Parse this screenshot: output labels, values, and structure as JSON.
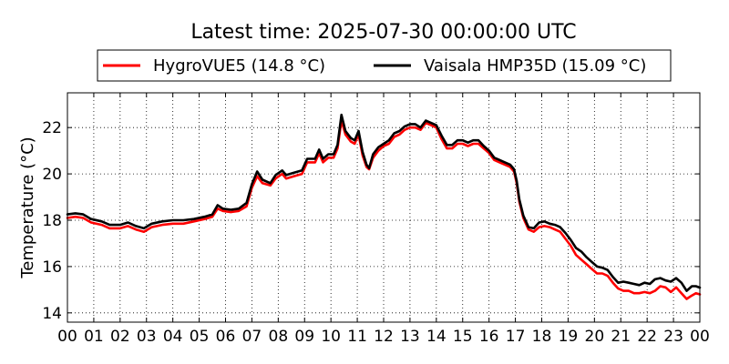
{
  "chart_data": {
    "type": "line",
    "title": "Latest time: 2025-07-30 00:00:00 UTC",
    "ylabel": "Temperature (°C)",
    "xlabel": "",
    "xlim": [
      0,
      24
    ],
    "ylim": [
      13.6,
      23.5
    ],
    "grid": true,
    "legend_placement": "top",
    "x_tick_labels": [
      "00",
      "01",
      "02",
      "03",
      "04",
      "05",
      "06",
      "07",
      "08",
      "09",
      "10",
      "11",
      "12",
      "13",
      "14",
      "15",
      "16",
      "17",
      "18",
      "19",
      "20",
      "21",
      "22",
      "23",
      "00"
    ],
    "y_ticks": [
      14,
      16,
      18,
      20,
      22
    ],
    "y_tick_labels": [
      "14",
      "16",
      "18",
      "20",
      "22"
    ],
    "series": [
      {
        "name": "HygroVUE5 (14.8 °C)",
        "color": "#ff0000",
        "points": [
          [
            0,
            18.1
          ],
          [
            0.3,
            18.15
          ],
          [
            0.6,
            18.1
          ],
          [
            0.9,
            17.9
          ],
          [
            1.3,
            17.8
          ],
          [
            1.6,
            17.65
          ],
          [
            2.0,
            17.65
          ],
          [
            2.3,
            17.75
          ],
          [
            2.6,
            17.6
          ],
          [
            2.9,
            17.5
          ],
          [
            3.2,
            17.7
          ],
          [
            3.6,
            17.8
          ],
          [
            4.0,
            17.85
          ],
          [
            4.4,
            17.85
          ],
          [
            4.8,
            17.95
          ],
          [
            5.2,
            18.05
          ],
          [
            5.5,
            18.15
          ],
          [
            5.7,
            18.5
          ],
          [
            5.9,
            18.4
          ],
          [
            6.2,
            18.35
          ],
          [
            6.5,
            18.4
          ],
          [
            6.8,
            18.6
          ],
          [
            7.0,
            19.4
          ],
          [
            7.2,
            19.9
          ],
          [
            7.4,
            19.6
          ],
          [
            7.7,
            19.5
          ],
          [
            7.9,
            19.8
          ],
          [
            8.15,
            20.0
          ],
          [
            8.3,
            19.8
          ],
          [
            8.6,
            19.9
          ],
          [
            8.9,
            20.0
          ],
          [
            9.1,
            20.5
          ],
          [
            9.4,
            20.5
          ],
          [
            9.55,
            20.9
          ],
          [
            9.7,
            20.5
          ],
          [
            9.9,
            20.7
          ],
          [
            10.1,
            20.7
          ],
          [
            10.25,
            21.1
          ],
          [
            10.4,
            22.3
          ],
          [
            10.55,
            21.7
          ],
          [
            10.75,
            21.4
          ],
          [
            10.9,
            21.3
          ],
          [
            11.05,
            21.7
          ],
          [
            11.2,
            20.8
          ],
          [
            11.35,
            20.3
          ],
          [
            11.45,
            20.2
          ],
          [
            11.6,
            20.7
          ],
          [
            11.8,
            21.0
          ],
          [
            12.0,
            21.2
          ],
          [
            12.2,
            21.3
          ],
          [
            12.4,
            21.6
          ],
          [
            12.6,
            21.7
          ],
          [
            12.8,
            21.9
          ],
          [
            13.0,
            22.0
          ],
          [
            13.2,
            22.0
          ],
          [
            13.4,
            21.9
          ],
          [
            13.6,
            22.2
          ],
          [
            13.8,
            22.1
          ],
          [
            14.0,
            22.0
          ],
          [
            14.2,
            21.5
          ],
          [
            14.4,
            21.1
          ],
          [
            14.6,
            21.1
          ],
          [
            14.8,
            21.3
          ],
          [
            15.0,
            21.3
          ],
          [
            15.2,
            21.2
          ],
          [
            15.4,
            21.3
          ],
          [
            15.6,
            21.3
          ],
          [
            15.8,
            21.1
          ],
          [
            16.0,
            20.9
          ],
          [
            16.2,
            20.6
          ],
          [
            16.4,
            20.5
          ],
          [
            16.6,
            20.4
          ],
          [
            16.8,
            20.3
          ],
          [
            16.95,
            20.1
          ],
          [
            17.05,
            19.6
          ],
          [
            17.15,
            18.8
          ],
          [
            17.3,
            18.1
          ],
          [
            17.5,
            17.6
          ],
          [
            17.7,
            17.5
          ],
          [
            17.9,
            17.7
          ],
          [
            18.1,
            17.75
          ],
          [
            18.3,
            17.7
          ],
          [
            18.5,
            17.6
          ],
          [
            18.7,
            17.5
          ],
          [
            18.9,
            17.2
          ],
          [
            19.1,
            16.9
          ],
          [
            19.3,
            16.5
          ],
          [
            19.5,
            16.3
          ],
          [
            19.7,
            16.1
          ],
          [
            19.9,
            15.9
          ],
          [
            20.1,
            15.7
          ],
          [
            20.3,
            15.7
          ],
          [
            20.5,
            15.6
          ],
          [
            20.7,
            15.3
          ],
          [
            20.9,
            15.05
          ],
          [
            21.1,
            14.95
          ],
          [
            21.3,
            14.95
          ],
          [
            21.5,
            14.85
          ],
          [
            21.7,
            14.85
          ],
          [
            21.9,
            14.9
          ],
          [
            22.1,
            14.85
          ],
          [
            22.3,
            14.95
          ],
          [
            22.5,
            15.15
          ],
          [
            22.7,
            15.1
          ],
          [
            22.9,
            14.9
          ],
          [
            23.1,
            15.1
          ],
          [
            23.3,
            14.85
          ],
          [
            23.5,
            14.6
          ],
          [
            23.7,
            14.75
          ],
          [
            23.85,
            14.85
          ],
          [
            24.0,
            14.8
          ]
        ]
      },
      {
        "name": "Vaisala HMP35D (15.09 °C)",
        "color": "#000000",
        "points": [
          [
            0,
            18.25
          ],
          [
            0.3,
            18.3
          ],
          [
            0.6,
            18.25
          ],
          [
            0.9,
            18.05
          ],
          [
            1.3,
            17.95
          ],
          [
            1.6,
            17.8
          ],
          [
            2.0,
            17.8
          ],
          [
            2.3,
            17.9
          ],
          [
            2.6,
            17.75
          ],
          [
            2.9,
            17.65
          ],
          [
            3.2,
            17.85
          ],
          [
            3.6,
            17.95
          ],
          [
            4.0,
            18.0
          ],
          [
            4.4,
            18.0
          ],
          [
            4.8,
            18.05
          ],
          [
            5.2,
            18.15
          ],
          [
            5.5,
            18.25
          ],
          [
            5.7,
            18.65
          ],
          [
            5.9,
            18.5
          ],
          [
            6.2,
            18.45
          ],
          [
            6.5,
            18.5
          ],
          [
            6.8,
            18.75
          ],
          [
            7.0,
            19.55
          ],
          [
            7.2,
            20.1
          ],
          [
            7.4,
            19.75
          ],
          [
            7.7,
            19.6
          ],
          [
            7.9,
            19.95
          ],
          [
            8.15,
            20.15
          ],
          [
            8.3,
            19.95
          ],
          [
            8.6,
            20.05
          ],
          [
            8.9,
            20.15
          ],
          [
            9.1,
            20.65
          ],
          [
            9.4,
            20.65
          ],
          [
            9.55,
            21.05
          ],
          [
            9.7,
            20.65
          ],
          [
            9.9,
            20.85
          ],
          [
            10.1,
            20.85
          ],
          [
            10.25,
            21.25
          ],
          [
            10.4,
            22.55
          ],
          [
            10.55,
            21.85
          ],
          [
            10.75,
            21.55
          ],
          [
            10.9,
            21.45
          ],
          [
            11.05,
            21.85
          ],
          [
            11.2,
            20.95
          ],
          [
            11.35,
            20.4
          ],
          [
            11.45,
            20.25
          ],
          [
            11.6,
            20.85
          ],
          [
            11.8,
            21.15
          ],
          [
            12.0,
            21.3
          ],
          [
            12.2,
            21.45
          ],
          [
            12.4,
            21.75
          ],
          [
            12.6,
            21.85
          ],
          [
            12.8,
            22.05
          ],
          [
            13.0,
            22.15
          ],
          [
            13.2,
            22.15
          ],
          [
            13.4,
            22.0
          ],
          [
            13.6,
            22.3
          ],
          [
            13.8,
            22.2
          ],
          [
            14.0,
            22.1
          ],
          [
            14.2,
            21.65
          ],
          [
            14.4,
            21.25
          ],
          [
            14.6,
            21.25
          ],
          [
            14.8,
            21.45
          ],
          [
            15.0,
            21.45
          ],
          [
            15.2,
            21.35
          ],
          [
            15.4,
            21.45
          ],
          [
            15.6,
            21.45
          ],
          [
            15.8,
            21.2
          ],
          [
            16.0,
            21.0
          ],
          [
            16.2,
            20.7
          ],
          [
            16.4,
            20.6
          ],
          [
            16.6,
            20.5
          ],
          [
            16.8,
            20.4
          ],
          [
            16.95,
            20.2
          ],
          [
            17.05,
            19.7
          ],
          [
            17.15,
            18.9
          ],
          [
            17.3,
            18.2
          ],
          [
            17.5,
            17.7
          ],
          [
            17.7,
            17.65
          ],
          [
            17.9,
            17.9
          ],
          [
            18.1,
            17.95
          ],
          [
            18.3,
            17.85
          ],
          [
            18.5,
            17.8
          ],
          [
            18.7,
            17.7
          ],
          [
            18.9,
            17.45
          ],
          [
            19.1,
            17.15
          ],
          [
            19.3,
            16.8
          ],
          [
            19.5,
            16.65
          ],
          [
            19.7,
            16.4
          ],
          [
            19.9,
            16.2
          ],
          [
            20.1,
            16.0
          ],
          [
            20.3,
            15.95
          ],
          [
            20.5,
            15.85
          ],
          [
            20.7,
            15.55
          ],
          [
            20.9,
            15.3
          ],
          [
            21.1,
            15.35
          ],
          [
            21.3,
            15.3
          ],
          [
            21.5,
            15.25
          ],
          [
            21.7,
            15.2
          ],
          [
            21.9,
            15.3
          ],
          [
            22.1,
            15.25
          ],
          [
            22.3,
            15.45
          ],
          [
            22.5,
            15.5
          ],
          [
            22.7,
            15.4
          ],
          [
            22.9,
            15.35
          ],
          [
            23.1,
            15.5
          ],
          [
            23.3,
            15.3
          ],
          [
            23.5,
            14.95
          ],
          [
            23.7,
            15.15
          ],
          [
            23.85,
            15.15
          ],
          [
            24.0,
            15.09
          ]
        ]
      }
    ]
  }
}
